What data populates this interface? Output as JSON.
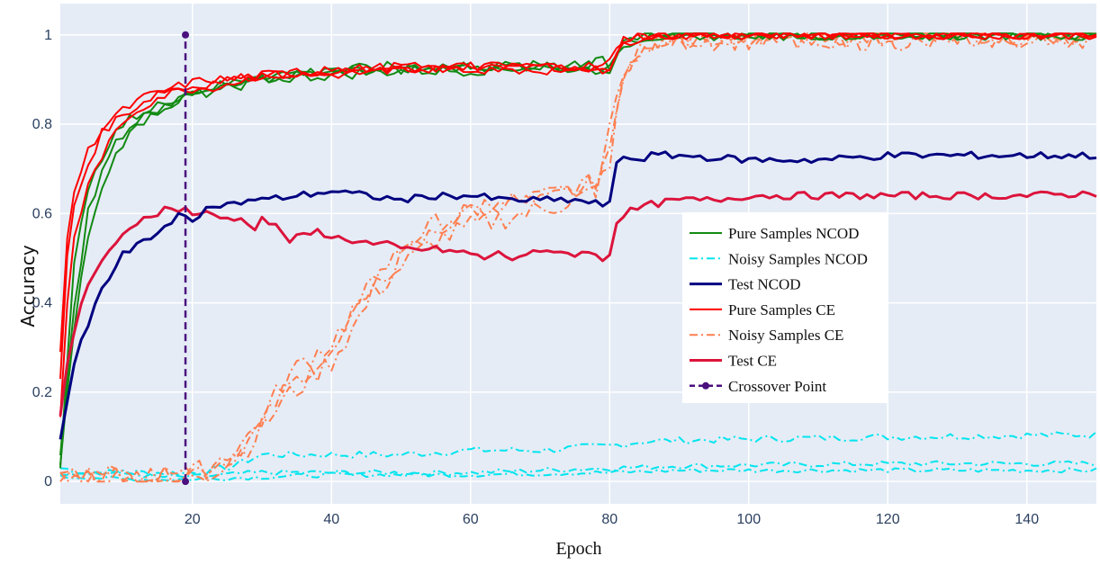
{
  "chart_data": {
    "type": "line",
    "xlabel": "Epoch",
    "ylabel": "Accuracy",
    "xlim": [
      1,
      150
    ],
    "ylim": [
      -0.05,
      1.07
    ],
    "x_ticks": [
      20,
      40,
      60,
      80,
      100,
      120,
      140
    ],
    "y_ticks": [
      0,
      0.2,
      0.4,
      0.6,
      0.8,
      1
    ],
    "y_tick_labels": [
      "0",
      "0.2",
      "0.4",
      "0.6",
      "0.8",
      "1"
    ],
    "grid": true,
    "legend_position": "center-right",
    "crossover": {
      "name": "Crossover Point",
      "color": "#4b0f7e",
      "x": 19,
      "y_range": [
        0,
        1
      ]
    },
    "series": [
      {
        "name": "Pure Samples NCOD",
        "color": "#138a13",
        "dash": "solid",
        "width": 2,
        "runs": [
          {
            "x": [
              1,
              3,
              5,
              8,
              10,
              13,
              16,
              19,
              25,
              30,
              40,
              50,
              60,
              70,
              79,
              80,
              82,
              85,
              90,
              100,
              120,
              150
            ],
            "y": [
              0.02,
              0.5,
              0.66,
              0.76,
              0.8,
              0.83,
              0.84,
              0.86,
              0.88,
              0.9,
              0.92,
              0.92,
              0.93,
              0.93,
              0.93,
              0.94,
              0.99,
              0.995,
              0.998,
              1,
              1,
              1
            ],
            "noise": 0.012
          },
          {
            "x": [
              1,
              3,
              5,
              8,
              10,
              13,
              16,
              19,
              25,
              30,
              40,
              50,
              60,
              70,
              79,
              80,
              82,
              85,
              90,
              100,
              120,
              150
            ],
            "y": [
              0.03,
              0.35,
              0.55,
              0.7,
              0.76,
              0.81,
              0.84,
              0.86,
              0.88,
              0.9,
              0.91,
              0.92,
              0.92,
              0.93,
              0.94,
              0.93,
              0.98,
              0.995,
              0.998,
              1,
              1,
              1
            ],
            "noise": 0.012
          },
          {
            "x": [
              1,
              3,
              5,
              8,
              10,
              13,
              16,
              19,
              25,
              30,
              40,
              50,
              60,
              70,
              79,
              80,
              82,
              85,
              90,
              100,
              120,
              150
            ],
            "y": [
              0.05,
              0.4,
              0.6,
              0.73,
              0.78,
              0.82,
              0.85,
              0.87,
              0.89,
              0.91,
              0.92,
              0.93,
              0.93,
              0.93,
              0.92,
              0.92,
              0.99,
              0.995,
              0.998,
              1,
              1,
              1
            ],
            "noise": 0.012
          }
        ]
      },
      {
        "name": "Noisy Samples NCOD",
        "color": "#00e5ee",
        "dash": "9,4,2,4",
        "width": 2,
        "runs": [
          {
            "x": [
              1,
              5,
              10,
              15,
              19,
              20,
              25,
              30,
              40,
              50,
              60,
              70,
              80,
              85,
              100,
              120,
              150
            ],
            "y": [
              0.03,
              0.02,
              0.02,
              0.02,
              0.02,
              0.02,
              0.03,
              0.06,
              0.06,
              0.06,
              0.07,
              0.07,
              0.08,
              0.09,
              0.095,
              0.1,
              0.105
            ],
            "noise": 0.008
          },
          {
            "x": [
              1,
              5,
              10,
              15,
              19,
              20,
              30,
              40,
              60,
              80,
              90,
              120,
              150
            ],
            "y": [
              0.02,
              0.02,
              0.02,
              0.01,
              0.01,
              0.01,
              0.02,
              0.02,
              0.02,
              0.03,
              0.035,
              0.04,
              0.04
            ],
            "noise": 0.006
          },
          {
            "x": [
              1,
              5,
              10,
              15,
              19,
              20,
              30,
              40,
              60,
              80,
              90,
              120,
              150
            ],
            "y": [
              0.01,
              0.01,
              0.005,
              0.005,
              0.005,
              0.005,
              0.01,
              0.015,
              0.015,
              0.02,
              0.025,
              0.025,
              0.025
            ],
            "noise": 0.005
          }
        ]
      },
      {
        "name": "Test NCOD",
        "color": "#000080",
        "dash": "solid",
        "width": 3,
        "runs": [
          {
            "x": [
              1,
              2,
              3,
              4,
              5,
              6,
              7,
              8,
              9,
              10,
              11,
              12,
              13,
              14,
              15,
              16,
              17,
              18,
              19,
              20,
              22,
              24,
              26,
              28,
              30,
              35,
              40,
              45,
              50,
              55,
              60,
              65,
              70,
              75,
              79,
              80,
              81,
              82,
              84,
              86,
              90,
              100,
              110,
              120,
              130,
              140,
              150
            ],
            "y": [
              0.1,
              0.18,
              0.26,
              0.31,
              0.35,
              0.4,
              0.43,
              0.45,
              0.48,
              0.51,
              0.51,
              0.53,
              0.54,
              0.55,
              0.56,
              0.57,
              0.57,
              0.6,
              0.6,
              0.59,
              0.61,
              0.62,
              0.62,
              0.63,
              0.63,
              0.64,
              0.65,
              0.64,
              0.63,
              0.64,
              0.64,
              0.63,
              0.63,
              0.63,
              0.62,
              0.62,
              0.71,
              0.73,
              0.72,
              0.73,
              0.73,
              0.72,
              0.72,
              0.73,
              0.73,
              0.73,
              0.73
            ],
            "noise": 0.008
          }
        ]
      },
      {
        "name": "Pure Samples CE",
        "color": "#ff0000",
        "dash": "solid",
        "width": 2,
        "runs": [
          {
            "x": [
              1,
              2,
              3,
              5,
              7,
              9,
              11,
              13,
              15,
              17,
              19,
              22,
              25,
              30,
              40,
              50,
              60,
              70,
              79,
              80,
              82,
              85,
              90,
              100,
              120,
              150
            ],
            "y": [
              0.23,
              0.5,
              0.62,
              0.71,
              0.78,
              0.81,
              0.83,
              0.85,
              0.87,
              0.88,
              0.88,
              0.89,
              0.9,
              0.91,
              0.92,
              0.92,
              0.93,
              0.93,
              0.93,
              0.94,
              0.99,
              0.998,
              0.999,
              1,
              1,
              1
            ],
            "noise": 0.01
          },
          {
            "x": [
              1,
              2,
              3,
              5,
              7,
              9,
              11,
              13,
              15,
              17,
              19,
              22,
              25,
              30,
              40,
              50,
              60,
              70,
              79,
              80,
              82,
              85,
              90,
              100,
              120,
              150
            ],
            "y": [
              0.28,
              0.55,
              0.65,
              0.74,
              0.79,
              0.82,
              0.84,
              0.86,
              0.87,
              0.88,
              0.89,
              0.9,
              0.9,
              0.91,
              0.92,
              0.93,
              0.92,
              0.93,
              0.92,
              0.93,
              0.99,
              0.998,
              0.999,
              1,
              1,
              1
            ],
            "noise": 0.01
          },
          {
            "x": [
              1,
              2,
              3,
              5,
              7,
              9,
              11,
              13,
              15,
              17,
              19,
              22,
              25,
              30,
              40,
              50,
              60,
              70,
              79,
              80,
              82,
              85,
              90,
              100,
              120,
              150
            ],
            "y": [
              0.14,
              0.4,
              0.55,
              0.66,
              0.73,
              0.78,
              0.82,
              0.84,
              0.86,
              0.87,
              0.88,
              0.88,
              0.89,
              0.91,
              0.91,
              0.92,
              0.93,
              0.92,
              0.93,
              0.92,
              0.98,
              0.998,
              0.999,
              1,
              1,
              1
            ],
            "noise": 0.01
          }
        ]
      },
      {
        "name": "Noisy Samples CE",
        "color": "#ff7f50",
        "dash": "9,4,2,4",
        "width": 2,
        "runs": [
          {
            "x": [
              1,
              10,
              15,
              19,
              22,
              25,
              28,
              30,
              33,
              36,
              40,
              43,
              46,
              50,
              55,
              60,
              65,
              70,
              75,
              78,
              80,
              82,
              85,
              88,
              90,
              100,
              120,
              150
            ],
            "y": [
              0.01,
              0.01,
              0.01,
              0.02,
              0.03,
              0.05,
              0.09,
              0.13,
              0.2,
              0.24,
              0.28,
              0.36,
              0.45,
              0.52,
              0.58,
              0.6,
              0.62,
              0.64,
              0.66,
              0.67,
              0.75,
              0.92,
              0.98,
              0.99,
              0.995,
              0.995,
              0.995,
              0.995
            ],
            "noise": 0.02
          },
          {
            "x": [
              1,
              10,
              15,
              19,
              22,
              25,
              28,
              30,
              33,
              36,
              40,
              43,
              46,
              50,
              55,
              60,
              65,
              70,
              75,
              78,
              80,
              82,
              85,
              88,
              90,
              100,
              120,
              150
            ],
            "y": [
              0.02,
              0.02,
              0.01,
              0.02,
              0.02,
              0.04,
              0.08,
              0.12,
              0.18,
              0.22,
              0.27,
              0.34,
              0.42,
              0.48,
              0.54,
              0.57,
              0.59,
              0.61,
              0.63,
              0.65,
              0.72,
              0.9,
              0.97,
              0.99,
              0.99,
              0.99,
              0.995,
              0.995
            ],
            "noise": 0.025
          },
          {
            "x": [
              1,
              10,
              15,
              19,
              22,
              25,
              28,
              30,
              33,
              36,
              40,
              43,
              46,
              50,
              55,
              60,
              65,
              70,
              75,
              78,
              80,
              82,
              85,
              88,
              90,
              100,
              120,
              150
            ],
            "y": [
              0.0,
              0.01,
              0.01,
              0.01,
              0.03,
              0.06,
              0.1,
              0.14,
              0.22,
              0.27,
              0.31,
              0.38,
              0.44,
              0.5,
              0.56,
              0.61,
              0.63,
              0.62,
              0.65,
              0.66,
              0.78,
              0.93,
              0.98,
              0.99,
              0.99,
              0.99,
              0.99,
              0.995
            ],
            "noise": 0.025
          }
        ]
      },
      {
        "name": "Test CE",
        "color": "#dc143c",
        "dash": "solid",
        "width": 3,
        "runs": [
          {
            "x": [
              1,
              2,
              3,
              4,
              5,
              6,
              7,
              8,
              9,
              10,
              11,
              12,
              13,
              14,
              15,
              16,
              17,
              18,
              19,
              20,
              22,
              24,
              26,
              28,
              29,
              30,
              32,
              34,
              36,
              38,
              40,
              42,
              44,
              46,
              48,
              50,
              55,
              60,
              62,
              64,
              66,
              68,
              70,
              72,
              74,
              76,
              78,
              79,
              80,
              81,
              82,
              84,
              86,
              90,
              95,
              100,
              110,
              120,
              130,
              140,
              150
            ],
            "y": [
              0.14,
              0.26,
              0.33,
              0.4,
              0.44,
              0.47,
              0.49,
              0.51,
              0.53,
              0.55,
              0.57,
              0.58,
              0.59,
              0.6,
              0.6,
              0.61,
              0.61,
              0.61,
              0.61,
              0.6,
              0.6,
              0.59,
              0.59,
              0.58,
              0.57,
              0.59,
              0.57,
              0.54,
              0.55,
              0.56,
              0.55,
              0.54,
              0.54,
              0.53,
              0.53,
              0.52,
              0.52,
              0.51,
              0.5,
              0.51,
              0.5,
              0.51,
              0.51,
              0.52,
              0.51,
              0.51,
              0.51,
              0.5,
              0.51,
              0.58,
              0.6,
              0.61,
              0.62,
              0.63,
              0.63,
              0.64,
              0.64,
              0.64,
              0.64,
              0.64,
              0.645
            ],
            "noise": 0.008
          }
        ]
      }
    ]
  }
}
